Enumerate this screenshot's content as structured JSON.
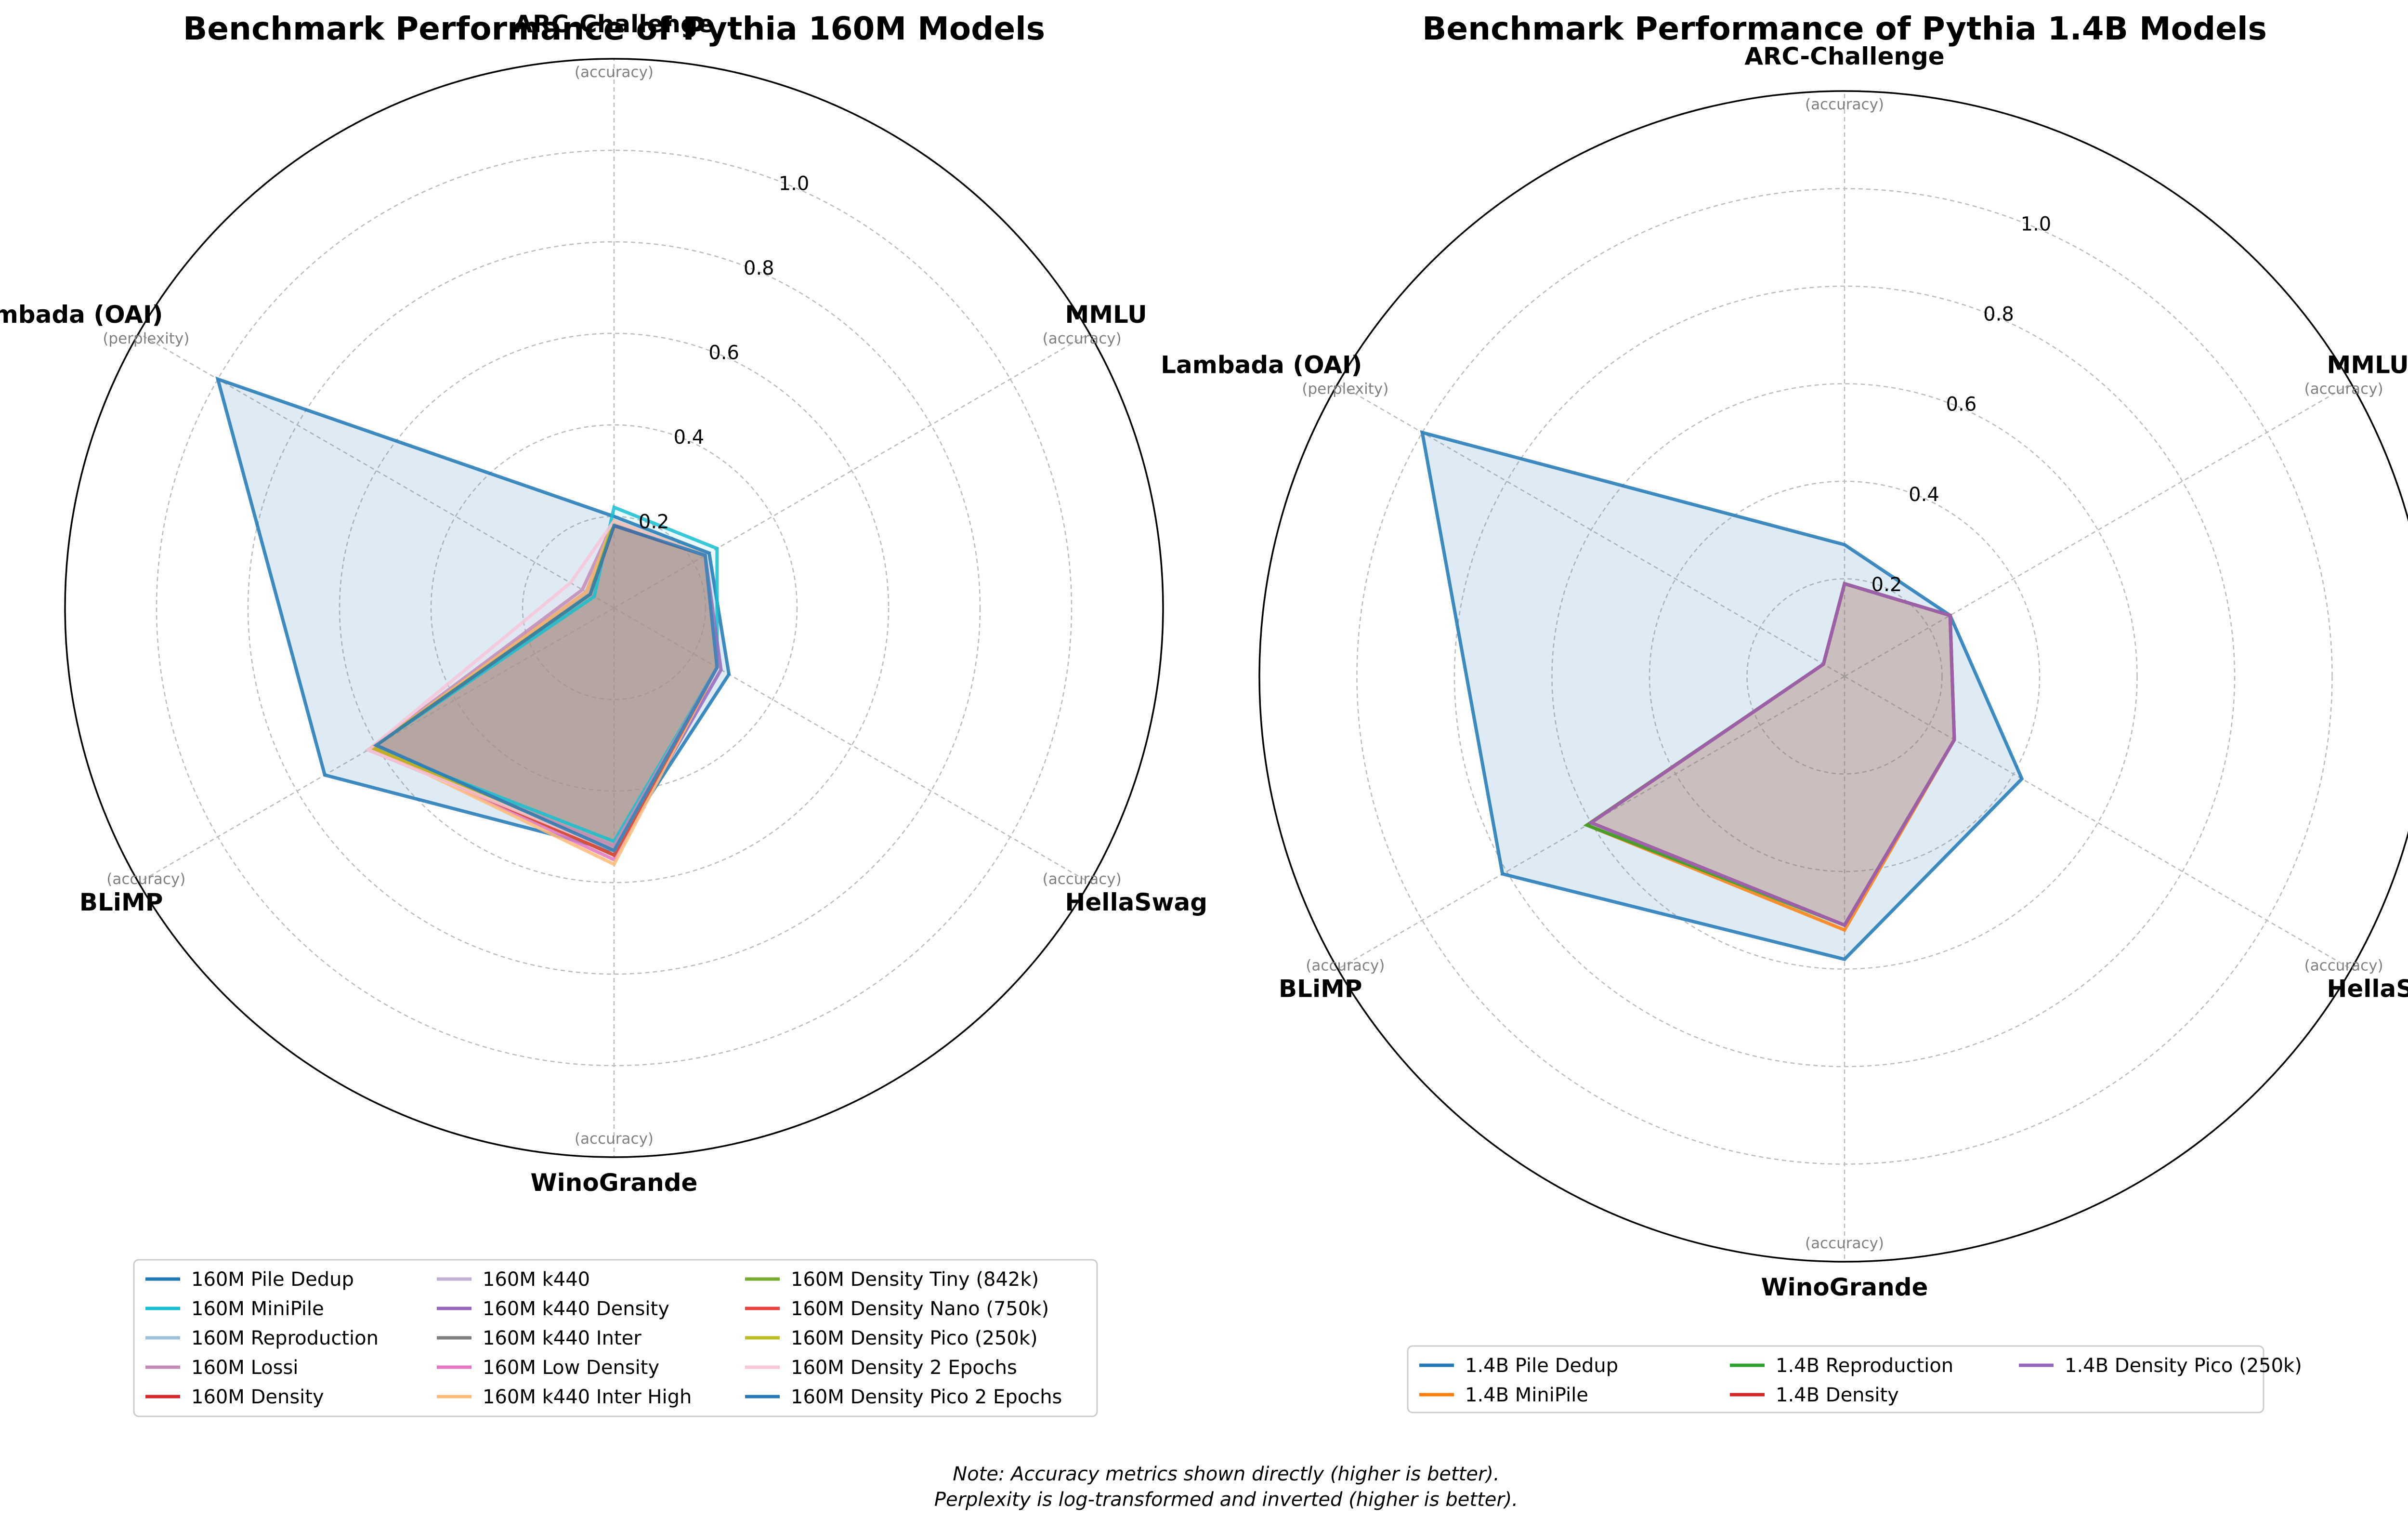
{
  "note": {
    "line1": "Note: Accuracy metrics shown directly (higher is better).",
    "line2": "Perplexity is log-transformed and inverted (higher is better)."
  },
  "chart_data": [
    {
      "type": "radar",
      "title": "Benchmark Performance of Pythia 160M Models",
      "axes": [
        {
          "name": "ARC-Challenge",
          "unit": "(accuracy)"
        },
        {
          "name": "MMLU",
          "unit": "(accuracy)"
        },
        {
          "name": "HellaSwag",
          "unit": "(accuracy)"
        },
        {
          "name": "WinoGrande",
          "unit": "(accuracy)"
        },
        {
          "name": "BLiMP",
          "unit": "(accuracy)"
        },
        {
          "name": "Lambada (OAI)",
          "unit": "(perplexity)"
        }
      ],
      "rlim": [
        0,
        1.2
      ],
      "rticks": [
        "0.2",
        "0.4",
        "0.6",
        "0.8",
        "1.0"
      ],
      "rtick_values": [
        0.2,
        0.4,
        0.6,
        0.8,
        1.0
      ],
      "grid": true,
      "legend_position": "below",
      "legend_columns": 3,
      "series": [
        {
          "name": "160M Pile Dedup",
          "color": "#1f77b4",
          "values": [
            0.2,
            0.24,
            0.29,
            0.53,
            0.73,
            1.0
          ]
        },
        {
          "name": "160M MiniPile",
          "color": "#17becf",
          "values": [
            0.22,
            0.26,
            0.26,
            0.51,
            0.61,
            0.05
          ]
        },
        {
          "name": "160M Reproduction",
          "color": "#9ec0db",
          "values": [
            0.19,
            0.23,
            0.26,
            0.53,
            0.62,
            0.07
          ]
        },
        {
          "name": "160M Lossi",
          "color": "#c38bb6",
          "values": [
            0.19,
            0.23,
            0.26,
            0.52,
            0.62,
            0.08
          ]
        },
        {
          "name": "160M Density",
          "color": "#d62728",
          "values": [
            0.18,
            0.23,
            0.26,
            0.53,
            0.62,
            0.07
          ]
        },
        {
          "name": "160M k440",
          "color": "#c5b0d5",
          "values": [
            0.19,
            0.23,
            0.26,
            0.53,
            0.62,
            0.07
          ]
        },
        {
          "name": "160M k440 Density",
          "color": "#9467bd",
          "values": [
            0.18,
            0.23,
            0.27,
            0.54,
            0.61,
            0.07
          ]
        },
        {
          "name": "160M k440 Inter",
          "color": "#7f7f7f",
          "values": [
            0.19,
            0.23,
            0.26,
            0.54,
            0.61,
            0.07
          ]
        },
        {
          "name": "160M Low Density",
          "color": "#e377c2",
          "values": [
            0.19,
            0.23,
            0.26,
            0.55,
            0.61,
            0.06
          ]
        },
        {
          "name": "160M k440 Inter High",
          "color": "#ffbb78",
          "values": [
            0.19,
            0.23,
            0.26,
            0.56,
            0.61,
            0.07
          ]
        },
        {
          "name": "160M Density Tiny (842k)",
          "color": "#77ac30",
          "values": [
            0.19,
            0.23,
            0.26,
            0.54,
            0.61,
            0.06
          ]
        },
        {
          "name": "160M Density Nano (750k)",
          "color": "#e8413e",
          "values": [
            0.18,
            0.23,
            0.26,
            0.54,
            0.61,
            0.06
          ]
        },
        {
          "name": "160M Density Pico (250k)",
          "color": "#bcbd22",
          "values": [
            0.19,
            0.23,
            0.26,
            0.53,
            0.61,
            0.06
          ]
        },
        {
          "name": "160M Density 2 Epochs",
          "color": "#f7c6d9",
          "values": [
            0.19,
            0.23,
            0.26,
            0.53,
            0.62,
            0.11
          ]
        },
        {
          "name": "160M Density Pico 2 Epochs",
          "color": "#2878b5",
          "values": [
            0.18,
            0.23,
            0.26,
            0.53,
            0.6,
            0.06
          ]
        }
      ]
    },
    {
      "type": "radar",
      "title": "Benchmark Performance of Pythia 1.4B Models",
      "axes": [
        {
          "name": "ARC-Challenge",
          "unit": "(accuracy)"
        },
        {
          "name": "MMLU",
          "unit": "(accuracy)"
        },
        {
          "name": "HellaSwag",
          "unit": "(accuracy)"
        },
        {
          "name": "WinoGrande",
          "unit": "(accuracy)"
        },
        {
          "name": "BLiMP",
          "unit": "(accuracy)"
        },
        {
          "name": "Lambada (OAI)",
          "unit": "(perplexity)"
        }
      ],
      "rlim": [
        0,
        1.2
      ],
      "rticks": [
        "0.2",
        "0.4",
        "0.6",
        "0.8",
        "1.0"
      ],
      "rtick_values": [
        0.2,
        0.4,
        0.6,
        0.8,
        1.0
      ],
      "grid": true,
      "legend_position": "below",
      "legend_columns": 3,
      "series": [
        {
          "name": "1.4B Pile Dedup",
          "color": "#1f77b4",
          "values": [
            0.27,
            0.25,
            0.42,
            0.58,
            0.81,
            1.0
          ]
        },
        {
          "name": "1.4B MiniPile",
          "color": "#ff7f0e",
          "values": [
            0.19,
            0.25,
            0.26,
            0.52,
            0.61,
            0.05
          ]
        },
        {
          "name": "1.4B Reproduction",
          "color": "#2ca02c",
          "values": [
            0.19,
            0.25,
            0.26,
            0.51,
            0.61,
            0.05
          ]
        },
        {
          "name": "1.4B Density",
          "color": "#d62728",
          "values": [
            0.19,
            0.25,
            0.26,
            0.51,
            0.6,
            0.05
          ]
        },
        {
          "name": "1.4B Density Pico (250k)",
          "color": "#9467bd",
          "values": [
            0.19,
            0.25,
            0.26,
            0.51,
            0.6,
            0.05
          ]
        }
      ]
    }
  ]
}
